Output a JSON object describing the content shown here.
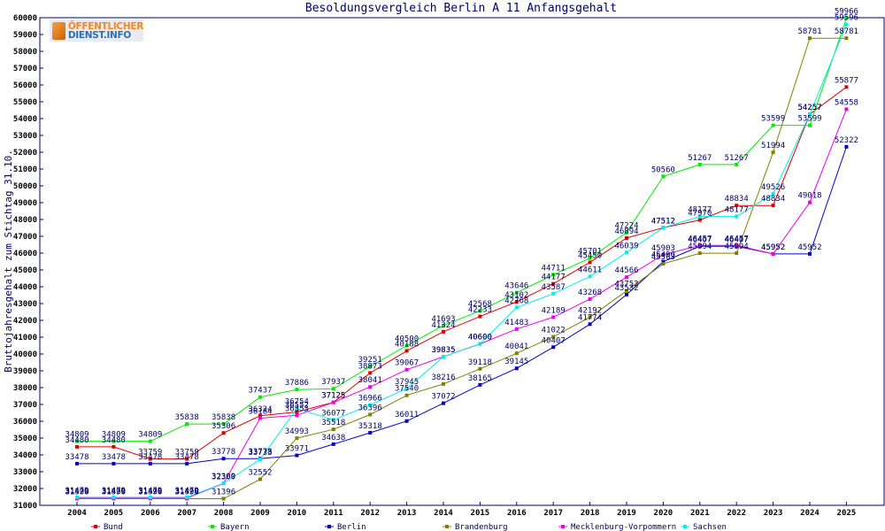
{
  "logo": {
    "line1": "ÖFFENTLICHER",
    "line2": "DIENST.INFO",
    "icon": "document-icon"
  },
  "chart_data": {
    "type": "line",
    "title": "Besoldungsvergleich Berlin A 11 Anfangsgehalt",
    "xlabel": "",
    "ylabel": "Bruttojahresgehalt zum Stichtag 31.10.",
    "ylim": [
      31000,
      60000
    ],
    "yticks": [
      31000,
      32000,
      33000,
      34000,
      35000,
      36000,
      37000,
      38000,
      39000,
      40000,
      41000,
      42000,
      43000,
      44000,
      45000,
      46000,
      47000,
      48000,
      49000,
      50000,
      51000,
      52000,
      53000,
      54000,
      55000,
      56000,
      57000,
      58000,
      59000,
      60000
    ],
    "grid": false,
    "legend_position": "bottom",
    "categories": [
      "2004",
      "2005",
      "2006",
      "2007",
      "2008",
      "2009",
      "2010",
      "2011",
      "2012",
      "2013",
      "2014",
      "2015",
      "2016",
      "2017",
      "2018",
      "2019",
      "2020",
      "2021",
      "2022",
      "2023",
      "2024",
      "2025"
    ],
    "series": [
      {
        "name": "Bund",
        "color": "#e00000",
        "values": [
          34480,
          34480,
          33759,
          33759,
          35306,
          36324,
          36552,
          37125,
          38873,
          40188,
          41324,
          42233,
          43102,
          44177,
          45450,
          46894,
          47512,
          47970,
          48834,
          48834,
          54257,
          55877
        ]
      },
      {
        "name": "Bayern",
        "color": "#00ee00",
        "values": [
          34809,
          34809,
          34809,
          35838,
          35838,
          37437,
          37886,
          37937,
          39251,
          40500,
          41693,
          42568,
          43646,
          44711,
          45701,
          47224,
          50560,
          51267,
          51267,
          53599,
          53599,
          59966
        ]
      },
      {
        "name": "Berlin",
        "color": "#0000cc",
        "values": [
          33478,
          33478,
          33478,
          33478,
          33778,
          33778,
          33971,
          34638,
          35318,
          36011,
          37072,
          38165,
          39145,
          40407,
          41774,
          43532,
          45490,
          46407,
          46407,
          45952,
          45952,
          52322
        ]
      },
      {
        "name": "Brandenburg",
        "color": "#808000",
        "values": [
          31396,
          31396,
          31396,
          31396,
          31396,
          32552,
          34993,
          35518,
          36396,
          37540,
          38216,
          39118,
          40041,
          41022,
          42192,
          43753,
          45363,
          45994,
          45994,
          51994,
          58781,
          58781
        ]
      },
      {
        "name": "Mecklenburg-Vorpommern",
        "color": "#ee00ee",
        "values": [
          31429,
          31429,
          31429,
          31429,
          32300,
          36184,
          36353,
          37125,
          38041,
          39067,
          39835,
          40600,
          41483,
          42189,
          43268,
          44566,
          45903,
          46457,
          46457,
          45952,
          49018,
          54558
        ]
      },
      {
        "name": "Sachsen",
        "color": "#00eeee",
        "values": [
          31479,
          31479,
          31479,
          31479,
          32309,
          33733,
          36754,
          36077,
          36966,
          37945,
          39835,
          40600,
          42768,
          43587,
          44611,
          46039,
          47512,
          48177,
          48177,
          49526,
          54257,
          59596
        ]
      }
    ]
  }
}
